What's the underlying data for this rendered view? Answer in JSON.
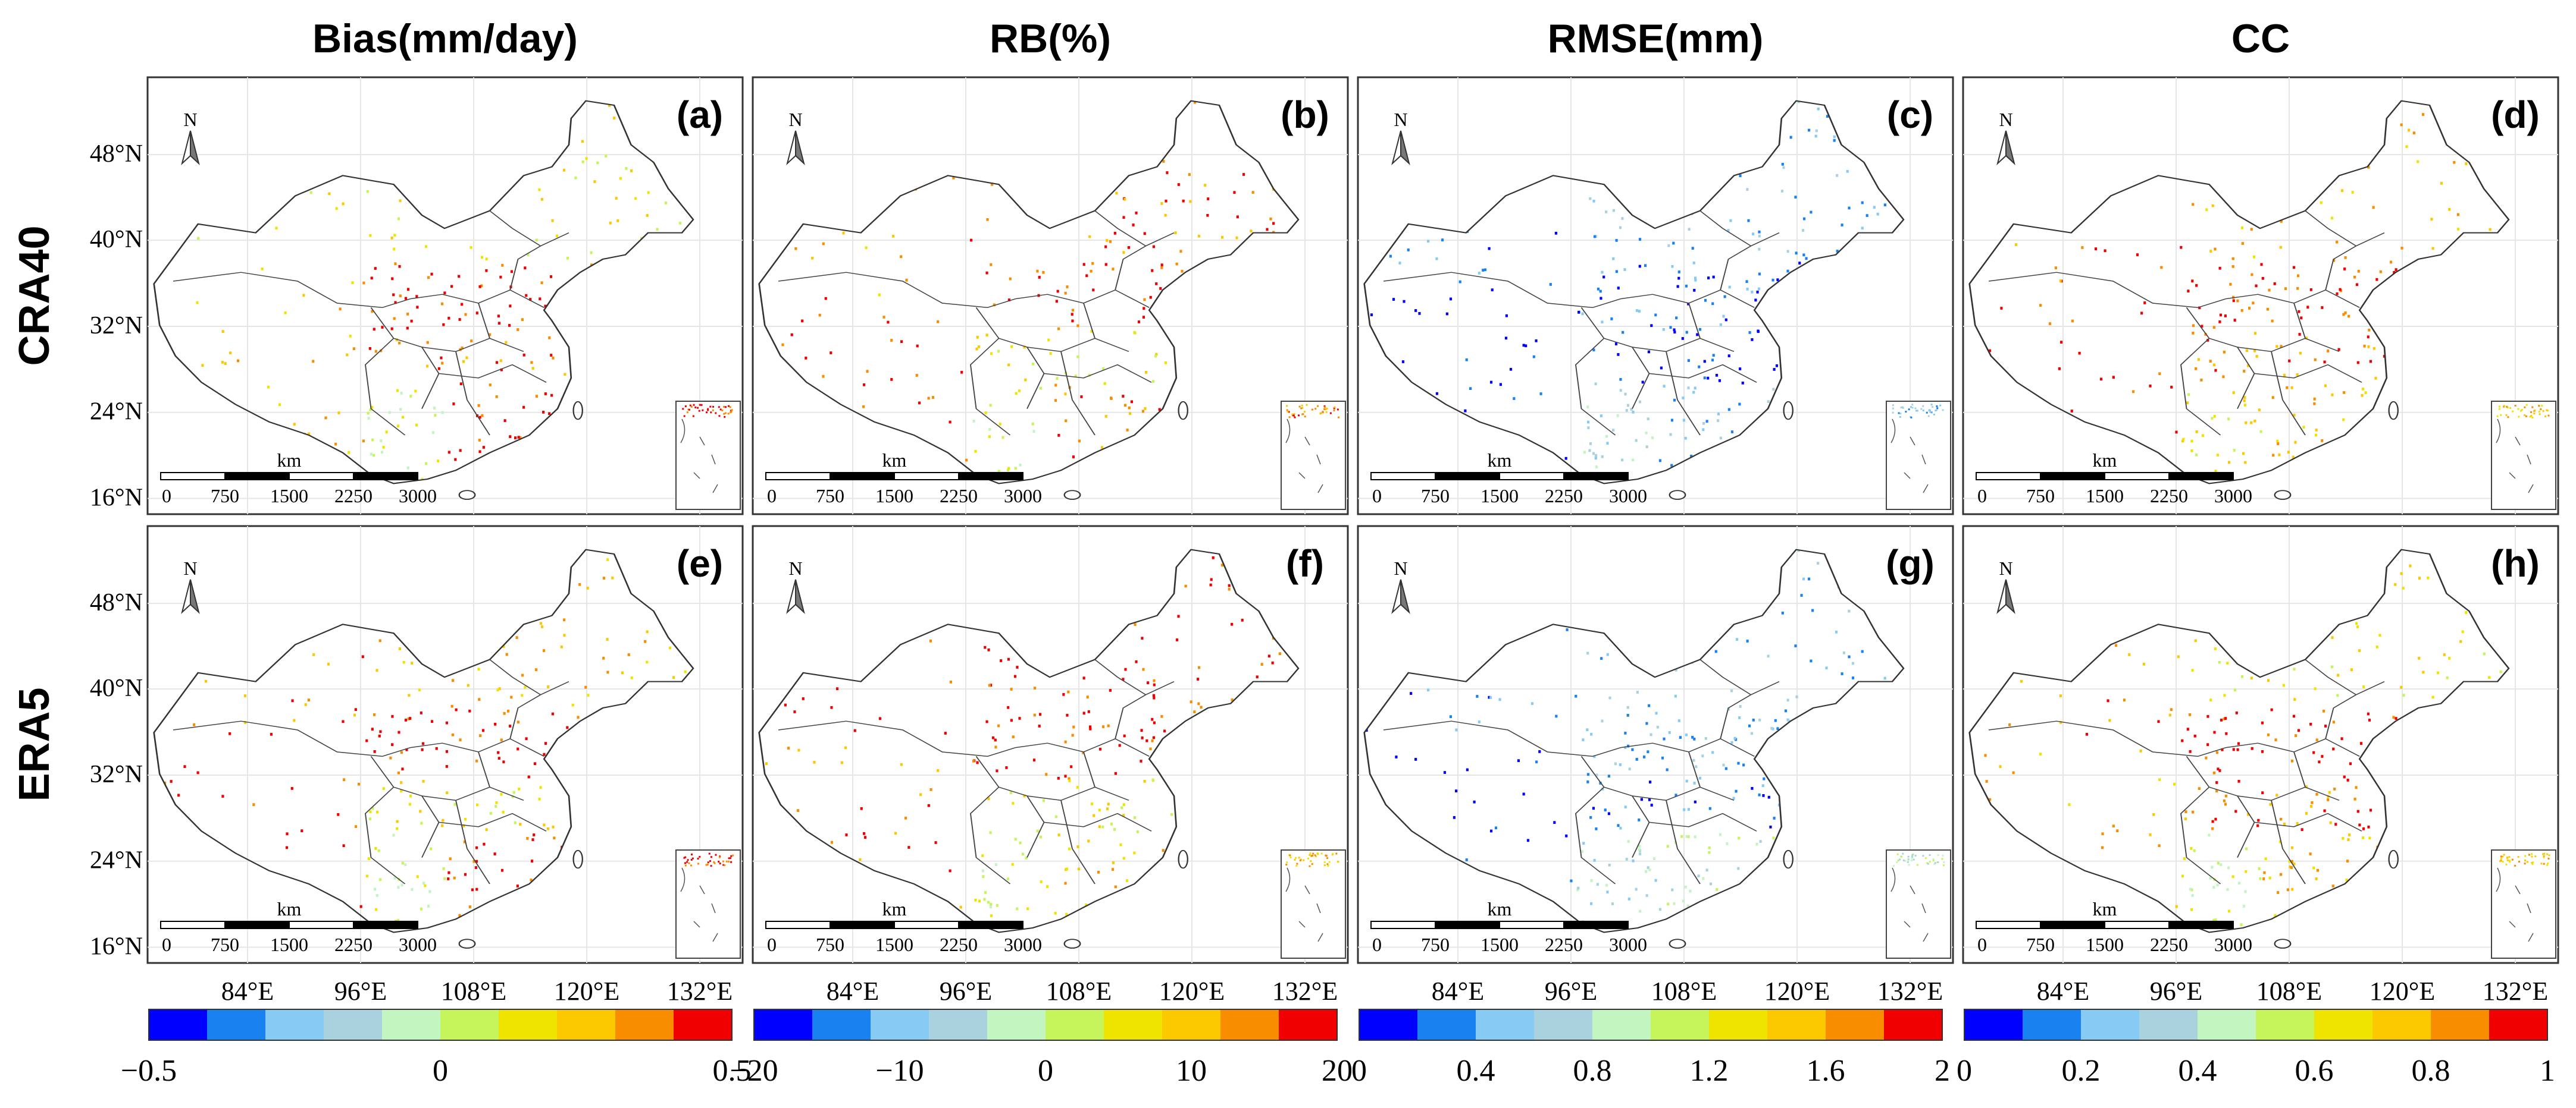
{
  "figure": {
    "columns": [
      {
        "title": "Bias(mm/day)",
        "colorbar_ticks": [
          "−0.5",
          "0",
          "0.5"
        ]
      },
      {
        "title": "RB(%)",
        "colorbar_ticks": [
          "−20",
          "−10",
          "0",
          "10",
          "20"
        ]
      },
      {
        "title": "RMSE(mm)",
        "colorbar_ticks": [
          "0",
          "0.4",
          "0.8",
          "1.2",
          "1.6",
          "2"
        ]
      },
      {
        "title": "CC",
        "colorbar_ticks": [
          "0",
          "0.2",
          "0.4",
          "0.6",
          "0.8",
          "1"
        ]
      }
    ],
    "rows": [
      {
        "label": "CRA40",
        "panels": [
          "(a)",
          "(b)",
          "(c)",
          "(d)"
        ]
      },
      {
        "label": "ERA5",
        "panels": [
          "(e)",
          "(f)",
          "(g)",
          "(h)"
        ]
      }
    ],
    "lat_ticks": [
      "48°N",
      "40°N",
      "32°N",
      "24°N",
      "16°N"
    ],
    "lon_ticks": [
      "84°E",
      "96°E",
      "108°E",
      "120°E",
      "132°E"
    ],
    "scale_bar": {
      "unit": "km",
      "ticks": [
        "0",
        "750",
        "1500",
        "2250",
        "3000"
      ]
    },
    "north_label": "N",
    "colormap": [
      "#0000ff",
      "#1a82f0",
      "#87cbf5",
      "#a9d2de",
      "#c2f5c0",
      "#c6f55b",
      "#efe400",
      "#fcc800",
      "#f88d00",
      "#f00000"
    ],
    "panel_dominant_bins": [
      [
        [
          6,
          7,
          6,
          9,
          8,
          5,
          9
        ],
        [
          7,
          9,
          8,
          9,
          6,
          5,
          8
        ],
        [
          1,
          0,
          2,
          1,
          0,
          3,
          2
        ],
        [
          8,
          9,
          7,
          9,
          8,
          6,
          7
        ]
      ],
      [
        [
          8,
          9,
          7,
          9,
          6,
          5,
          9
        ],
        [
          9,
          8,
          9,
          9,
          6,
          5,
          7
        ],
        [
          1,
          0,
          2,
          2,
          1,
          3,
          4
        ],
        [
          8,
          7,
          6,
          9,
          8,
          5,
          7
        ]
      ]
    ]
  }
}
